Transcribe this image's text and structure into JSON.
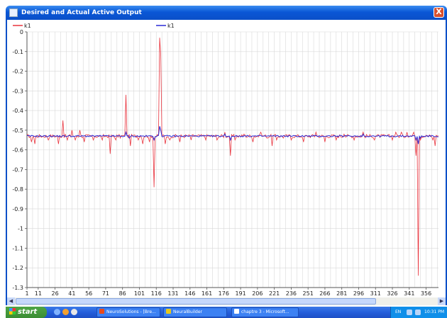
{
  "window": {
    "title": "Desired and Actual Active Output",
    "close_label": "X"
  },
  "colors": {
    "desired": "#e8323c",
    "actual": "#2a2ad6",
    "grid": "#d8d8d8",
    "axis": "#555555"
  },
  "chart_data": {
    "type": "line",
    "xlabel": "",
    "ylabel": "",
    "ylim": [
      -1.3,
      0
    ],
    "yticks": [
      0,
      -0.1,
      -0.2,
      -0.3,
      -0.4,
      -0.5,
      -0.6,
      -0.7,
      -0.8,
      -0.9,
      -1,
      -1.1,
      -1.2,
      -1.3
    ],
    "xlim": [
      1,
      367
    ],
    "xticks": [
      1,
      11,
      26,
      41,
      56,
      71,
      86,
      101,
      116,
      131,
      146,
      161,
      176,
      191,
      206,
      221,
      236,
      251,
      266,
      281,
      296,
      311,
      326,
      341,
      356
    ],
    "grid": true,
    "legend_placement": "top",
    "baseline": -0.53,
    "series": [
      {
        "name": "k1",
        "color": "#e8323c",
        "points": [
          [
            5,
            -0.56
          ],
          [
            8,
            -0.57
          ],
          [
            20,
            -0.55
          ],
          [
            29,
            -0.57
          ],
          [
            33,
            -0.45
          ],
          [
            37,
            -0.55
          ],
          [
            41,
            -0.5
          ],
          [
            44,
            -0.55
          ],
          [
            48,
            -0.5
          ],
          [
            52,
            -0.56
          ],
          [
            60,
            -0.55
          ],
          [
            68,
            -0.55
          ],
          [
            75,
            -0.62
          ],
          [
            80,
            -0.55
          ],
          [
            84,
            -0.54
          ],
          [
            89,
            -0.32
          ],
          [
            93,
            -0.58
          ],
          [
            100,
            -0.55
          ],
          [
            104,
            -0.57
          ],
          [
            110,
            -0.56
          ],
          [
            114,
            -0.79
          ],
          [
            119,
            -0.03
          ],
          [
            120,
            -0.12
          ],
          [
            124,
            -0.57
          ],
          [
            128,
            -0.55
          ],
          [
            137,
            -0.56
          ],
          [
            147,
            -0.55
          ],
          [
            160,
            -0.55
          ],
          [
            170,
            -0.55
          ],
          [
            177,
            -0.51
          ],
          [
            182,
            -0.63
          ],
          [
            186,
            -0.55
          ],
          [
            194,
            -0.52
          ],
          [
            202,
            -0.56
          ],
          [
            209,
            -0.51
          ],
          [
            215,
            -0.54
          ],
          [
            219,
            -0.58
          ],
          [
            223,
            -0.55
          ],
          [
            229,
            -0.54
          ],
          [
            236,
            -0.55
          ],
          [
            247,
            -0.56
          ],
          [
            258,
            -0.51
          ],
          [
            266,
            -0.56
          ],
          [
            276,
            -0.55
          ],
          [
            283,
            -0.52
          ],
          [
            292,
            -0.55
          ],
          [
            300,
            -0.51
          ],
          [
            310,
            -0.55
          ],
          [
            326,
            -0.55
          ],
          [
            329,
            -0.51
          ],
          [
            334,
            -0.51
          ],
          [
            339,
            -0.51
          ],
          [
            345,
            -0.51
          ],
          [
            347,
            -0.63
          ],
          [
            349,
            -1.24
          ],
          [
            351,
            -0.55
          ],
          [
            362,
            -0.55
          ],
          [
            364,
            -0.58
          ],
          [
            366,
            -0.53
          ]
        ]
      },
      {
        "name": "k1",
        "color": "#2a2ad6",
        "points": [
          [
            89,
            -0.51
          ],
          [
            92,
            -0.54
          ],
          [
            114,
            -0.55
          ],
          [
            119,
            -0.48
          ],
          [
            120,
            -0.5
          ],
          [
            177,
            -0.52
          ],
          [
            182,
            -0.55
          ],
          [
            300,
            -0.52
          ],
          [
            347,
            -0.55
          ],
          [
            349,
            -0.57
          ],
          [
            351,
            -0.54
          ]
        ]
      }
    ]
  },
  "taskbar": {
    "start_label": "start",
    "tasks": [
      {
        "label": "NeuroSolutions - [Bre..."
      },
      {
        "label": "NeuralBuilder"
      },
      {
        "label": "chaptre 3 - Microsoft..."
      }
    ],
    "language": "EN",
    "clock": "10:31 PM"
  }
}
